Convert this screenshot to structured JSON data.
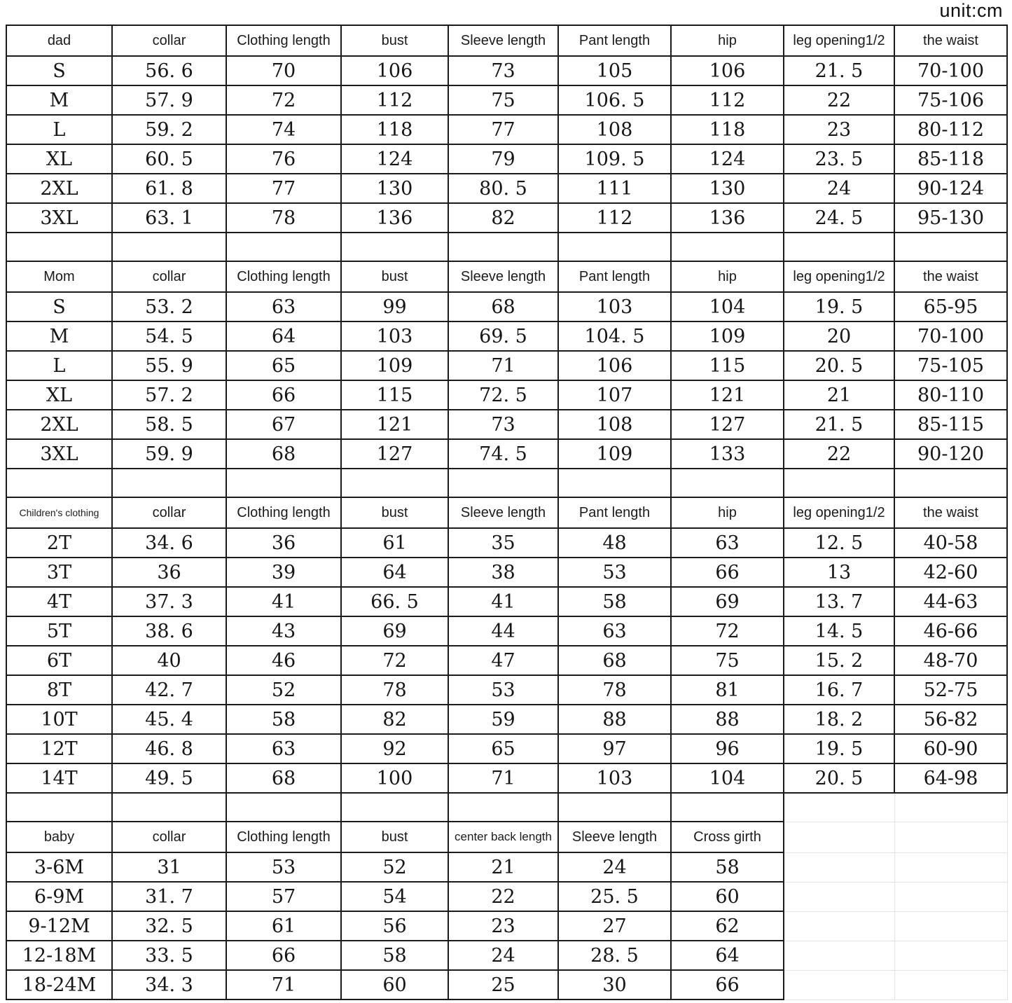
{
  "unit_label": "unit:cm",
  "colors": {
    "border": "#1b1b1b",
    "faint_grid": "#e1e4e6",
    "text": "#161616",
    "background": "#ffffff"
  },
  "chart_data": [
    {
      "type": "table",
      "title": "dad",
      "columns": [
        "dad",
        "collar",
        "Clothing length",
        "bust",
        "Sleeve length",
        "Pant length",
        "hip",
        "leg opening1/2",
        "the waist"
      ],
      "rows": [
        [
          "S",
          "56. 6",
          "70",
          "106",
          "73",
          "105",
          "106",
          "21. 5",
          "70-100"
        ],
        [
          "M",
          "57. 9",
          "72",
          "112",
          "75",
          "106. 5",
          "112",
          "22",
          "75-106"
        ],
        [
          "L",
          "59. 2",
          "74",
          "118",
          "77",
          "108",
          "118",
          "23",
          "80-112"
        ],
        [
          "XL",
          "60. 5",
          "76",
          "124",
          "79",
          "109. 5",
          "124",
          "23. 5",
          "85-118"
        ],
        [
          "2XL",
          "61. 8",
          "77",
          "130",
          "80. 5",
          "111",
          "130",
          "24",
          "90-124"
        ],
        [
          "3XL",
          "63. 1",
          "78",
          "136",
          "82",
          "112",
          "136",
          "24. 5",
          "95-130"
        ]
      ]
    },
    {
      "type": "table",
      "title": "Mom",
      "columns": [
        "Mom",
        "collar",
        "Clothing length",
        "bust",
        "Sleeve length",
        "Pant length",
        "hip",
        "leg opening1/2",
        "the waist"
      ],
      "rows": [
        [
          "S",
          "53. 2",
          "63",
          "99",
          "68",
          "103",
          "104",
          "19. 5",
          "65-95"
        ],
        [
          "M",
          "54. 5",
          "64",
          "103",
          "69. 5",
          "104. 5",
          "109",
          "20",
          "70-100"
        ],
        [
          "L",
          "55. 9",
          "65",
          "109",
          "71",
          "106",
          "115",
          "20. 5",
          "75-105"
        ],
        [
          "XL",
          "57. 2",
          "66",
          "115",
          "72. 5",
          "107",
          "121",
          "21",
          "80-110"
        ],
        [
          "2XL",
          "58. 5",
          "67",
          "121",
          "73",
          "108",
          "127",
          "21. 5",
          "85-115"
        ],
        [
          "3XL",
          "59. 9",
          "68",
          "127",
          "74. 5",
          "109",
          "133",
          "22",
          "90-120"
        ]
      ]
    },
    {
      "type": "table",
      "title": "Children's clothing",
      "columns": [
        "Children's clothing",
        "collar",
        "Clothing length",
        "bust",
        "Sleeve length",
        "Pant length",
        "hip",
        "leg opening1/2",
        "the waist"
      ],
      "rows": [
        [
          "2T",
          "34. 6",
          "36",
          "61",
          "35",
          "48",
          "63",
          "12. 5",
          "40-58"
        ],
        [
          "3T",
          "36",
          "39",
          "64",
          "38",
          "53",
          "66",
          "13",
          "42-60"
        ],
        [
          "4T",
          "37. 3",
          "41",
          "66. 5",
          "41",
          "58",
          "69",
          "13. 7",
          "44-63"
        ],
        [
          "5T",
          "38. 6",
          "43",
          "69",
          "44",
          "63",
          "72",
          "14. 5",
          "46-66"
        ],
        [
          "6T",
          "40",
          "46",
          "72",
          "47",
          "68",
          "75",
          "15. 2",
          "48-70"
        ],
        [
          "8T",
          "42. 7",
          "52",
          "78",
          "53",
          "78",
          "81",
          "16. 7",
          "52-75"
        ],
        [
          "10T",
          "45. 4",
          "58",
          "82",
          "59",
          "88",
          "88",
          "18. 2",
          "56-82"
        ],
        [
          "12T",
          "46. 8",
          "63",
          "92",
          "65",
          "97",
          "96",
          "19. 5",
          "60-90"
        ],
        [
          "14T",
          "49. 5",
          "68",
          "100",
          "71",
          "103",
          "104",
          "20. 5",
          "64-98"
        ]
      ]
    },
    {
      "type": "table",
      "title": "baby",
      "columns": [
        "baby",
        "collar",
        "Clothing length",
        "bust",
        "center back length",
        "Sleeve length",
        "Cross girth"
      ],
      "rows": [
        [
          "3-6M",
          "31",
          "53",
          "52",
          "21",
          "24",
          "58"
        ],
        [
          "6-9M",
          "31. 7",
          "57",
          "54",
          "22",
          "25. 5",
          "60"
        ],
        [
          "9-12M",
          "32. 5",
          "61",
          "56",
          "23",
          "27",
          "62"
        ],
        [
          "12-18M",
          "33. 5",
          "66",
          "58",
          "24",
          "28. 5",
          "64"
        ],
        [
          "18-24M",
          "34. 3",
          "71",
          "60",
          "25",
          "30",
          "66"
        ]
      ]
    }
  ]
}
